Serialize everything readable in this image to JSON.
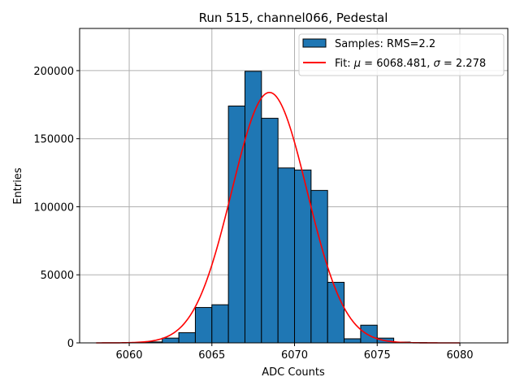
{
  "chart_data": {
    "type": "bar",
    "title": "Run 515, channel066, Pedestal",
    "xlabel": "ADC Counts",
    "ylabel": "Entries",
    "xlim": [
      2.0,
      27.9
    ],
    "ylim": [
      0,
      231000
    ],
    "grid": true,
    "x_ticks": [
      {
        "value": 5,
        "label": "6060"
      },
      {
        "value": 10,
        "label": "6065"
      },
      {
        "value": 15,
        "label": "6070"
      },
      {
        "value": 20,
        "label": "6075"
      },
      {
        "value": 25,
        "label": "6080"
      }
    ],
    "y_ticks": [
      {
        "value": 0,
        "label": "0"
      },
      {
        "value": 50000,
        "label": "50000"
      },
      {
        "value": 100000,
        "label": "100000"
      },
      {
        "value": 150000,
        "label": "150000"
      },
      {
        "value": 200000,
        "label": "200000"
      }
    ],
    "bin_edges": [
      5,
      6,
      7,
      8,
      9,
      10,
      11,
      12,
      13,
      14,
      15,
      16,
      17,
      18,
      19,
      20,
      21,
      22,
      23
    ],
    "bin_counts": [
      0,
      700,
      3500,
      7500,
      26000,
      28000,
      174000,
      199500,
      165000,
      128500,
      127000,
      112000,
      44500,
      3000,
      13000,
      3500,
      600,
      200
    ],
    "fit": {
      "mu": 13.481,
      "sigma": 2.278,
      "amplitude": 184000,
      "x_range": [
        3.0,
        25.0
      ]
    },
    "legend": {
      "position": "top-right",
      "samples_label": "Samples: RMS=2.2",
      "fit_label_prefix": "Fit: ",
      "fit_mu_symbol": "μ",
      "fit_mu_value": " = 6068.481, ",
      "fit_sigma_symbol": "σ",
      "fit_sigma_value": " = 2.278"
    },
    "colors": {
      "bar_fill": "#1f77b4",
      "bar_edge": "#000000",
      "fit_line": "#ff0000"
    }
  }
}
